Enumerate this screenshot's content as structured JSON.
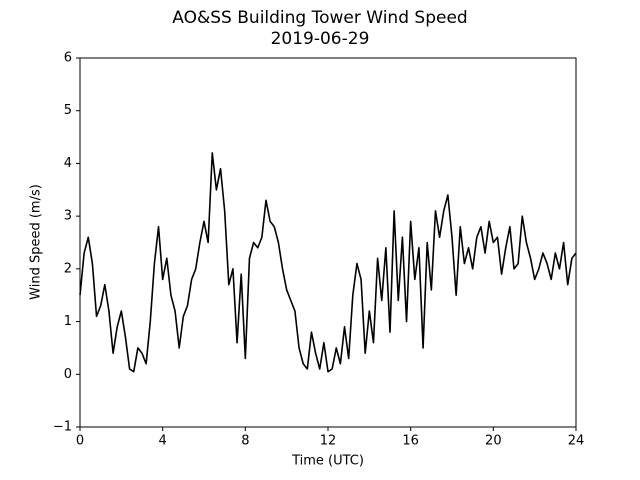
{
  "chart_data": {
    "type": "line",
    "title": "AO&SS Building Tower Wind Speed",
    "subtitle": "2019-06-29",
    "x_label": "Time (UTC)",
    "y_label": "Wind Speed (m/s)",
    "xlim": [
      0,
      24
    ],
    "xticks": [
      0,
      4,
      8,
      12,
      16,
      20,
      24
    ],
    "ylim": [
      -1,
      6
    ],
    "yticks": [
      {
        "value": -1,
        "label": "−1"
      },
      0,
      1,
      2,
      3,
      4,
      5,
      6
    ],
    "grid": false,
    "x": [
      0,
      0.2,
      0.4,
      0.6,
      0.8,
      1,
      1.2,
      1.4,
      1.6,
      1.8,
      2,
      2.2,
      2.4,
      2.6,
      2.8,
      3,
      3.2,
      3.4,
      3.6,
      3.8,
      4,
      4.2,
      4.4,
      4.6,
      4.8,
      5,
      5.2,
      5.4,
      5.6,
      5.8,
      6,
      6.2,
      6.4,
      6.6,
      6.8,
      7,
      7.2,
      7.4,
      7.6,
      7.8,
      8,
      8.2,
      8.4,
      8.6,
      8.8,
      9,
      9.2,
      9.4,
      9.6,
      9.8,
      10,
      10.2,
      10.4,
      10.6,
      10.8,
      11,
      11.2,
      11.4,
      11.6,
      11.8,
      12,
      12.2,
      12.4,
      12.6,
      12.8,
      13,
      13.2,
      13.4,
      13.6,
      13.8,
      14,
      14.2,
      14.4,
      14.6,
      14.8,
      15,
      15.2,
      15.4,
      15.6,
      15.8,
      16,
      16.2,
      16.4,
      16.6,
      16.8,
      17,
      17.2,
      17.4,
      17.6,
      17.8,
      18,
      18.2,
      18.4,
      18.6,
      18.8,
      19,
      19.2,
      19.4,
      19.6,
      19.8,
      20,
      20.2,
      20.4,
      20.6,
      20.8,
      21,
      21.2,
      21.4,
      21.6,
      21.8,
      22,
      22.2,
      22.4,
      22.6,
      22.8,
      23,
      23.2,
      23.4,
      23.6,
      23.8,
      24
    ],
    "series": [
      {
        "name": "Wind Speed",
        "color": "#000000",
        "values": [
          1.5,
          2.3,
          2.6,
          2.1,
          1.1,
          1.3,
          1.7,
          1.2,
          0.4,
          0.9,
          1.2,
          0.7,
          0.1,
          0.05,
          0.5,
          0.4,
          0.2,
          1.0,
          2.1,
          2.8,
          1.8,
          2.2,
          1.5,
          1.2,
          0.5,
          1.1,
          1.3,
          1.8,
          2.0,
          2.5,
          2.9,
          2.5,
          4.2,
          3.5,
          3.9,
          3.1,
          1.7,
          2.0,
          0.6,
          1.9,
          0.3,
          2.2,
          2.5,
          2.4,
          2.6,
          3.3,
          2.9,
          2.8,
          2.5,
          2.0,
          1.6,
          1.4,
          1.2,
          0.5,
          0.2,
          0.1,
          0.8,
          0.4,
          0.1,
          0.6,
          0.05,
          0.1,
          0.5,
          0.2,
          0.9,
          0.3,
          1.5,
          2.1,
          1.8,
          0.4,
          1.2,
          0.6,
          2.2,
          1.4,
          2.4,
          0.8,
          3.1,
          1.4,
          2.6,
          1.0,
          2.9,
          1.8,
          2.4,
          0.5,
          2.5,
          1.6,
          3.1,
          2.6,
          3.1,
          3.4,
          2.6,
          1.5,
          2.8,
          2.1,
          2.4,
          2.0,
          2.6,
          2.8,
          2.3,
          2.9,
          2.5,
          2.6,
          1.9,
          2.4,
          2.8,
          2.0,
          2.1,
          3.0,
          2.5,
          2.2,
          1.8,
          2.0,
          2.3,
          2.1,
          1.8,
          2.3,
          2.0,
          2.5,
          1.7,
          2.2,
          2.3
        ]
      }
    ]
  }
}
